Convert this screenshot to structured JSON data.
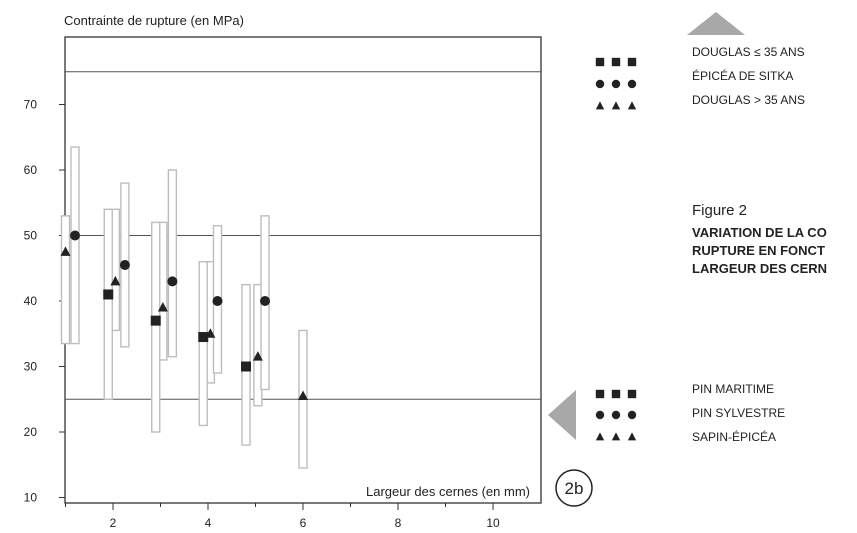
{
  "chart_data": {
    "type": "scatter",
    "ylabel": "Contrainte de rupture (en MPa)",
    "xlabel": "Largeur des cernes (en mm)",
    "x_ticks": [
      2,
      4,
      6,
      8,
      10
    ],
    "y_ticks": [
      10,
      20,
      30,
      40,
      50,
      60,
      70
    ],
    "xlim": [
      0,
      10
    ],
    "ylim": [
      8,
      80
    ],
    "grid_y": [
      25,
      50,
      75
    ],
    "badge": "2b",
    "series": [
      {
        "name": "DOUGLAS > 35 ANS",
        "marker": "triangle",
        "points": [
          {
            "x": 1.0,
            "y": 47.5,
            "low": 33.5,
            "high": 53
          },
          {
            "x": 2.05,
            "y": 43,
            "low": 35.5,
            "high": 54
          },
          {
            "x": 3.05,
            "y": 39,
            "low": 31,
            "high": 52
          },
          {
            "x": 4.05,
            "y": 35,
            "low": 27.5,
            "high": 46
          },
          {
            "x": 5.05,
            "y": 31.5,
            "low": 24,
            "high": 42.5
          },
          {
            "x": 6.0,
            "y": 25.5,
            "low": 14.5,
            "high": 35.5
          }
        ]
      },
      {
        "name": "PIN MARITIME",
        "marker": "square",
        "points": [
          {
            "x": 1.9,
            "y": 41,
            "low": 25,
            "high": 54
          },
          {
            "x": 2.9,
            "y": 37,
            "low": 20,
            "high": 52
          },
          {
            "x": 3.9,
            "y": 34.5,
            "low": 21,
            "high": 46
          },
          {
            "x": 4.8,
            "y": 30,
            "low": 18,
            "high": 42.5
          }
        ]
      },
      {
        "name": "ÉPICÉA DE SITKA",
        "marker": "circle",
        "points": [
          {
            "x": 1.2,
            "y": 50,
            "low": 33.5,
            "high": 63.5
          },
          {
            "x": 2.25,
            "y": 45.5,
            "low": 33,
            "high": 58
          },
          {
            "x": 3.25,
            "y": 43,
            "low": 31.5,
            "high": 60
          },
          {
            "x": 4.2,
            "y": 40,
            "low": 29,
            "high": 51.5
          },
          {
            "x": 5.2,
            "y": 40,
            "low": 26.5,
            "high": 53
          }
        ]
      }
    ]
  },
  "legend_top": {
    "items": [
      "DOUGLAS ≤ 35 ANS",
      "ÉPICÉA DE SITKA",
      "DOUGLAS > 35 ANS"
    ]
  },
  "legend_bottom": {
    "items": [
      "PIN MARITIME",
      "PIN SYLVESTRE",
      "SAPIN-ÉPICÉA"
    ]
  },
  "figure": {
    "label": "Figure 2",
    "caption_lines": [
      "VARIATION DE LA CO",
      "RUPTURE EN FONCT",
      "LARGEUR DES CERN"
    ]
  },
  "colors": {
    "ink": "#222222",
    "frame": "#333333",
    "grid": "#555555",
    "bar": "#bdbdbd",
    "shade": "#a8a8a8"
  }
}
